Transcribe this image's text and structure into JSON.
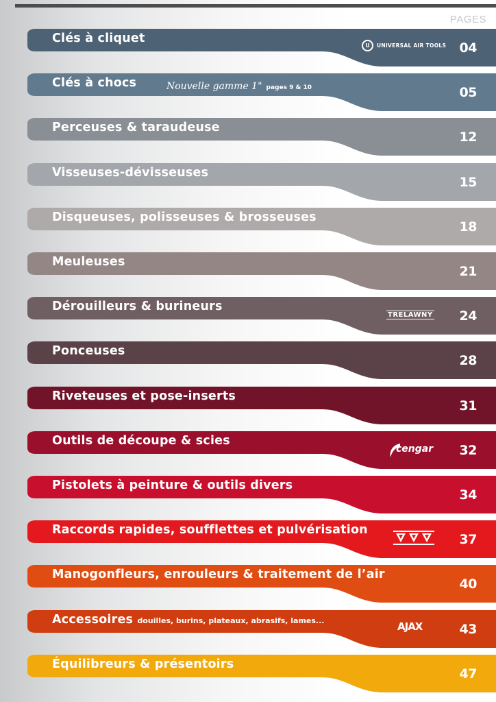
{
  "header": {
    "pages_label": "PAGES"
  },
  "rows": [
    {
      "label": "Clés à cliquet",
      "page": "04",
      "color": "#4d6275",
      "brand": "UNIVERSAL AIR TOOLS"
    },
    {
      "label": "Clés à chocs",
      "page": "05",
      "color": "#617a8e",
      "note_script": "Nouvelle gamme 1\"",
      "note_small": "pages 9 & 10"
    },
    {
      "label": "Perceuses & taraudeuse",
      "page": "12",
      "color": "#8a8f96"
    },
    {
      "label": "Visseuses-dévisseuses",
      "page": "15",
      "color": "#a3a6aa"
    },
    {
      "label": "Disqueuses, polisseuses & brosseuses",
      "page": "18",
      "color": "#aeaaa9"
    },
    {
      "label": "Meuleuses",
      "page": "21",
      "color": "#958686"
    },
    {
      "label": "Dérouilleurs & burineurs",
      "page": "24",
      "color": "#6f5f62",
      "brand": "TRELAWNY"
    },
    {
      "label": "Ponceuses",
      "page": "28",
      "color": "#5a4248"
    },
    {
      "label": "Riveteuses et pose-inserts",
      "page": "31",
      "color": "#71142a"
    },
    {
      "label": "Outils de découpe & scies",
      "page": "32",
      "color": "#9a0f2c",
      "brand": "cengar"
    },
    {
      "label": "Pistolets à peinture & outils divers",
      "page": "34",
      "color": "#c8102e"
    },
    {
      "label": "Raccords rapides, soufflettes et pulvérisation",
      "page": "37",
      "color": "#e3191e",
      "brand": "triangles"
    },
    {
      "label": "Manogonfleurs, enrouleurs & traitement de l’air",
      "page": "40",
      "color": "#e04d12"
    },
    {
      "label": "Accessoires",
      "sub": "douilles, burins, plateaux, abrasifs, lames...",
      "page": "43",
      "color": "#d03d10",
      "brand": "AJAX"
    },
    {
      "label": "Équilibreurs & présentoirs",
      "page": "47",
      "color": "#f2a90c"
    }
  ]
}
